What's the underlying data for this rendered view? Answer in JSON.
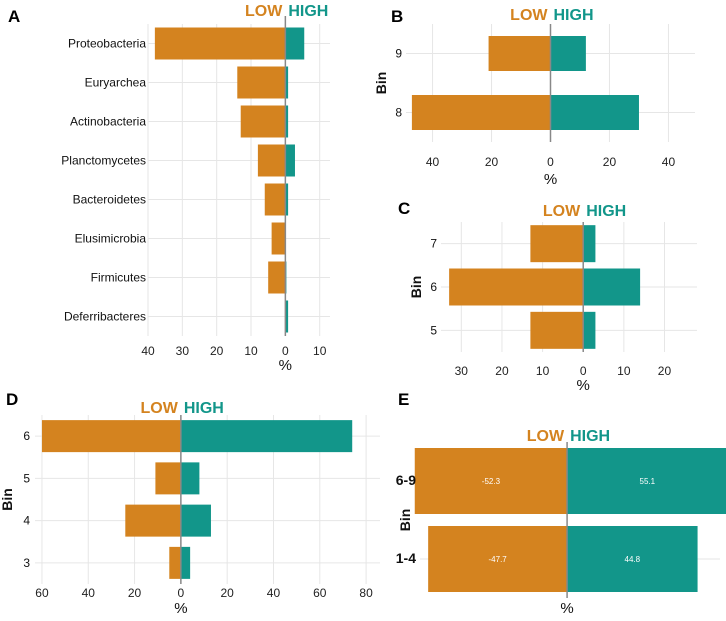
{
  "colors": {
    "low": "#D4831F",
    "high": "#12968A",
    "grid": "#e6e6e6",
    "zero": "#888888"
  },
  "legend": {
    "low": "LOW",
    "high": "HIGH"
  },
  "chart_data": [
    {
      "panel": "A",
      "type": "bar",
      "orientation": "horizontal",
      "categories": [
        "Proteobacteria",
        "Euryarchea",
        "Actinobacteria",
        "Planctomycetes",
        "Bacteroidetes",
        "Elusimicrobia",
        "Firmicutes",
        "Deferribacteres"
      ],
      "series": [
        {
          "name": "LOW",
          "values": [
            -38,
            -14,
            -13,
            -8,
            -6,
            -4,
            -5,
            0
          ]
        },
        {
          "name": "HIGH",
          "values": [
            5.5,
            0.8,
            0.8,
            2.8,
            0.8,
            0,
            0.3,
            0.8
          ]
        }
      ],
      "xticks": [
        "40",
        "30",
        "20",
        "10",
        "0",
        "10"
      ],
      "xlim": [
        -40,
        13
      ],
      "xlabel": "%",
      "ylabel": ""
    },
    {
      "panel": "B",
      "type": "bar",
      "orientation": "horizontal",
      "categories": [
        "9",
        "8"
      ],
      "series": [
        {
          "name": "LOW",
          "values": [
            -21,
            -47
          ]
        },
        {
          "name": "HIGH",
          "values": [
            12,
            30
          ]
        }
      ],
      "xticks": [
        "40",
        "20",
        "0",
        "20",
        "40"
      ],
      "xlim": [
        -49,
        49
      ],
      "xlabel": "%",
      "ylabel": "Bin"
    },
    {
      "panel": "C",
      "type": "bar",
      "orientation": "horizontal",
      "categories": [
        "7",
        "6",
        "5"
      ],
      "series": [
        {
          "name": "LOW",
          "values": [
            -13,
            -33,
            -13
          ]
        },
        {
          "name": "HIGH",
          "values": [
            3,
            14,
            3
          ]
        }
      ],
      "xticks": [
        "30",
        "20",
        "10",
        "0",
        "10",
        "20"
      ],
      "xlim": [
        -35,
        28
      ],
      "xlabel": "%",
      "ylabel": "Bin"
    },
    {
      "panel": "D",
      "type": "bar",
      "orientation": "horizontal",
      "categories": [
        "6",
        "5",
        "4",
        "3"
      ],
      "series": [
        {
          "name": "LOW",
          "values": [
            -60,
            -11,
            -24,
            -5
          ]
        },
        {
          "name": "HIGH",
          "values": [
            74,
            8,
            13,
            4
          ]
        }
      ],
      "xticks": [
        "60",
        "40",
        "20",
        "0",
        "20",
        "40",
        "60",
        "80"
      ],
      "xlim": [
        -63,
        86
      ],
      "xlabel": "%",
      "ylabel": "Bin"
    },
    {
      "panel": "E",
      "type": "bar",
      "orientation": "horizontal",
      "categories": [
        "6-9",
        "1-4"
      ],
      "series": [
        {
          "name": "LOW",
          "values": [
            -52.3,
            -47.7
          ],
          "labels": [
            "-52.3",
            "-47.7"
          ]
        },
        {
          "name": "HIGH",
          "values": [
            55.1,
            44.8
          ],
          "labels": [
            "55.1",
            "44.8"
          ]
        }
      ],
      "xticks": [],
      "xlim": [
        -50.5,
        52.5
      ],
      "xlabel": "%",
      "ylabel": "Bin"
    }
  ]
}
